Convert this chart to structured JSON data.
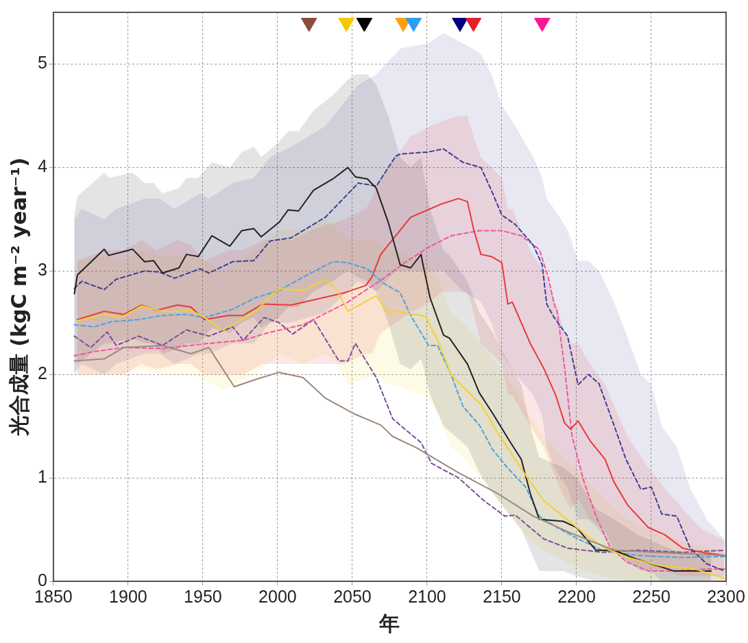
{
  "chart_data": {
    "type": "line",
    "xlabel": "年",
    "ylabel": "光合成量 (kgC m⁻² year⁻¹)",
    "xlim": [
      1850,
      2300
    ],
    "ylim": [
      0,
      5.5
    ],
    "xticks": [
      1850,
      1900,
      1950,
      2000,
      2050,
      2100,
      2150,
      2200,
      2250,
      2300
    ],
    "yticks": [
      0,
      1,
      2,
      3,
      4,
      5
    ],
    "grid": true,
    "legend": false,
    "marker": "none",
    "series": [
      {
        "color": "#a08878",
        "line_style": "solid",
        "x": [
          1864,
          1884,
          1897,
          1923,
          1942,
          1954,
          1971,
          1985,
          2001,
          2017,
          2032,
          2051,
          2069,
          2077,
          2093,
          2121,
          2147,
          2171,
          2194,
          2225,
          2299
        ],
        "values": [
          2.13,
          2.15,
          2.26,
          2.28,
          2.2,
          2.26,
          1.88,
          1.95,
          2.02,
          1.97,
          1.77,
          1.62,
          1.51,
          1.4,
          1.29,
          1.05,
          0.85,
          0.63,
          0.48,
          0.3,
          0.25
        ]
      },
      {
        "color": "#f2d22e",
        "line_style": "solid",
        "x": [
          1866,
          1884,
          1895,
          1909,
          1923,
          1933,
          1942,
          1951,
          1963,
          1970,
          1985,
          2001,
          2017,
          2032,
          2040,
          2047,
          2066,
          2074,
          2079,
          2096,
          2099,
          2108,
          2116,
          2124,
          2136,
          2147,
          2157,
          2169,
          2178,
          2191,
          2206,
          2219,
          2234,
          2256,
          2279,
          2299
        ],
        "values": [
          2.52,
          2.58,
          2.55,
          2.66,
          2.61,
          2.61,
          2.62,
          2.55,
          2.43,
          2.48,
          2.61,
          2.83,
          2.81,
          2.92,
          2.81,
          2.61,
          2.76,
          2.59,
          2.61,
          2.57,
          2.56,
          2.3,
          2.0,
          1.88,
          1.71,
          1.44,
          1.22,
          0.96,
          0.78,
          0.63,
          0.45,
          0.32,
          0.23,
          0.15,
          0.12,
          0.03
        ],
        "upper": [
          3.1,
          3.15,
          3.1,
          3.2,
          3.15,
          3.15,
          3.15,
          3.1,
          3.0,
          3.05,
          3.2,
          3.4,
          3.4,
          3.5,
          3.4,
          3.3,
          3.3,
          3.2,
          3.2,
          3.1,
          3.1,
          2.9,
          2.6,
          2.5,
          2.3,
          2.1,
          1.9,
          1.6,
          1.4,
          1.2,
          1.0,
          0.8,
          0.6,
          0.45,
          0.35,
          0.3
        ],
        "lower": [
          2.0,
          2.0,
          2.0,
          2.05,
          2.0,
          2.0,
          2.0,
          1.95,
          1.85,
          1.9,
          2.0,
          2.2,
          2.1,
          2.2,
          2.1,
          1.9,
          2.0,
          1.9,
          1.9,
          1.8,
          1.8,
          1.6,
          1.3,
          1.2,
          1.0,
          0.8,
          0.6,
          0.4,
          0.3,
          0.2,
          0.1,
          0.05,
          0,
          0,
          0,
          0
        ]
      },
      {
        "color": "#222222",
        "line_style": "solid",
        "x": [
          1864,
          1866,
          1884,
          1887,
          1903,
          1911,
          1917,
          1923,
          1934,
          1939,
          1947,
          1956,
          1968,
          1976,
          1984,
          1989,
          2001,
          2007,
          2014,
          2024,
          2037,
          2047,
          2052,
          2060,
          2066,
          2074,
          2082,
          2089,
          2096,
          2097,
          2102,
          2111,
          2115,
          2127,
          2135,
          2144,
          2155,
          2163,
          2169,
          2175,
          2191,
          2200,
          2213,
          2225,
          2241,
          2265,
          2290
        ],
        "values": [
          2.78,
          2.96,
          3.21,
          3.15,
          3.21,
          3.09,
          3.1,
          2.98,
          3.03,
          3.16,
          3.14,
          3.34,
          3.24,
          3.39,
          3.41,
          3.33,
          3.47,
          3.59,
          3.58,
          3.78,
          3.89,
          4.0,
          3.91,
          3.89,
          3.8,
          3.47,
          3.06,
          3.03,
          3.16,
          3.08,
          2.74,
          2.38,
          2.35,
          2.1,
          1.82,
          1.62,
          1.36,
          1.18,
          0.85,
          0.6,
          0.58,
          0.52,
          0.3,
          0.3,
          0.21,
          0.1,
          0.1
        ],
        "upper": [
          3.55,
          3.72,
          3.95,
          3.9,
          3.95,
          3.85,
          3.85,
          3.75,
          3.8,
          3.9,
          3.9,
          4.05,
          4.0,
          4.15,
          4.2,
          4.1,
          4.25,
          4.35,
          4.35,
          4.55,
          4.7,
          4.85,
          4.9,
          4.9,
          4.8,
          4.5,
          4.1,
          4.0,
          4.1,
          4.0,
          3.6,
          3.2,
          3.15,
          2.9,
          2.6,
          2.4,
          2.1,
          1.9,
          1.5,
          1.2,
          1.1,
          1.0,
          0.7,
          0.6,
          0.45,
          0.3,
          0.25
        ],
        "lower": [
          2.0,
          2.1,
          2.3,
          2.3,
          2.35,
          2.3,
          2.3,
          2.2,
          2.25,
          2.3,
          2.3,
          2.45,
          2.4,
          2.5,
          2.55,
          2.45,
          2.55,
          2.65,
          2.65,
          2.8,
          2.9,
          3.0,
          2.95,
          2.9,
          2.8,
          2.5,
          2.1,
          2.05,
          2.15,
          2.1,
          1.8,
          1.5,
          1.45,
          1.3,
          1.05,
          0.85,
          0.65,
          0.5,
          0.3,
          0.1,
          0.1,
          0.05,
          0,
          0,
          0,
          0,
          0
        ]
      },
      {
        "color": "#4aa3e0",
        "line_style": "dashed",
        "x": [
          1864,
          1877,
          1889,
          1907,
          1923,
          1939,
          1951,
          1970,
          1985,
          2001,
          2017,
          2037,
          2047,
          2060,
          2071,
          2082,
          2089,
          2101,
          2107,
          2116,
          2124,
          2135,
          2144,
          2153,
          2166,
          2175,
          2187,
          2201,
          2217,
          2241,
          2271,
          2299
        ],
        "values": [
          2.48,
          2.46,
          2.51,
          2.53,
          2.57,
          2.58,
          2.55,
          2.63,
          2.74,
          2.81,
          2.94,
          3.09,
          3.08,
          3.02,
          2.88,
          2.79,
          2.57,
          2.28,
          2.28,
          2.0,
          1.69,
          1.51,
          1.27,
          1.11,
          0.91,
          0.63,
          0.52,
          0.41,
          0.3,
          0.25,
          0.23,
          0.24
        ]
      },
      {
        "color": "#3e3e94",
        "line_style": "dashed",
        "x": [
          1864,
          1869,
          1884,
          1892,
          1911,
          1921,
          1931,
          1948,
          1954,
          1970,
          1984,
          1995,
          2009,
          2032,
          2054,
          2066,
          2079,
          2082,
          2101,
          2111,
          2124,
          2136,
          2143,
          2150,
          2159,
          2171,
          2177,
          2180,
          2185,
          2194,
          2201,
          2208,
          2215,
          2225,
          2233,
          2243,
          2250,
          2257,
          2267,
          2276,
          2287,
          2299
        ],
        "values": [
          2.83,
          2.9,
          2.82,
          2.92,
          3.0,
          2.99,
          2.93,
          3.02,
          2.98,
          3.09,
          3.1,
          3.29,
          3.32,
          3.52,
          3.85,
          3.82,
          4.11,
          4.13,
          4.15,
          4.18,
          4.05,
          4.0,
          3.78,
          3.54,
          3.45,
          3.25,
          3.06,
          2.68,
          2.55,
          2.37,
          1.9,
          2.0,
          1.91,
          1.51,
          1.18,
          0.89,
          0.91,
          0.65,
          0.63,
          0.32,
          0.17,
          0.1
        ],
        "upper": [
          3.5,
          3.6,
          3.5,
          3.6,
          3.7,
          3.7,
          3.6,
          3.75,
          3.7,
          3.85,
          3.9,
          4.1,
          4.2,
          4.4,
          4.8,
          4.9,
          5.1,
          5.15,
          5.2,
          5.3,
          5.2,
          5.1,
          4.9,
          4.6,
          4.4,
          4.1,
          3.9,
          3.7,
          3.6,
          3.4,
          3.1,
          3.1,
          3.0,
          2.7,
          2.4,
          2.0,
          1.9,
          1.5,
          1.3,
          0.9,
          0.6,
          0.4
        ],
        "lower": [
          2.0,
          2.1,
          2.0,
          2.1,
          2.2,
          2.2,
          2.1,
          2.2,
          2.2,
          2.3,
          2.3,
          2.5,
          2.5,
          2.6,
          2.9,
          2.8,
          3.0,
          3.0,
          3.0,
          3.0,
          2.8,
          2.7,
          2.5,
          2.2,
          2.0,
          1.8,
          1.6,
          1.3,
          1.1,
          0.9,
          0.6,
          0.6,
          0.5,
          0.3,
          0.2,
          0.1,
          0.1,
          0,
          0,
          0,
          0,
          0
        ]
      },
      {
        "color": "#e8383d",
        "line_style": "solid",
        "x": [
          1866,
          1884,
          1897,
          1909,
          1919,
          1933,
          1942,
          1951,
          1967,
          1977,
          1990,
          2009,
          2024,
          2045,
          2059,
          2063,
          2069,
          2079,
          2089,
          2102,
          2110,
          2121,
          2127,
          2131,
          2136,
          2143,
          2150,
          2154,
          2157,
          2169,
          2178,
          2186,
          2192,
          2196,
          2201,
          2209,
          2219,
          2225,
          2234,
          2248,
          2259,
          2271,
          2284,
          2299
        ],
        "values": [
          2.53,
          2.61,
          2.58,
          2.67,
          2.62,
          2.67,
          2.65,
          2.53,
          2.57,
          2.57,
          2.68,
          2.67,
          2.72,
          2.79,
          2.86,
          2.94,
          3.16,
          3.34,
          3.52,
          3.6,
          3.65,
          3.7,
          3.67,
          3.41,
          3.16,
          3.14,
          3.08,
          2.68,
          2.7,
          2.3,
          2.06,
          1.8,
          1.53,
          1.47,
          1.55,
          1.36,
          1.18,
          0.96,
          0.74,
          0.52,
          0.45,
          0.32,
          0.28,
          0.25
        ],
        "upper": [
          3.1,
          3.2,
          3.2,
          3.3,
          3.2,
          3.3,
          3.25,
          3.1,
          3.2,
          3.2,
          3.3,
          3.3,
          3.4,
          3.5,
          3.6,
          3.7,
          3.9,
          4.1,
          4.3,
          4.4,
          4.45,
          4.5,
          4.5,
          4.3,
          4.1,
          4.0,
          3.9,
          3.6,
          3.6,
          3.2,
          3.0,
          2.7,
          2.4,
          2.3,
          2.3,
          2.1,
          1.9,
          1.7,
          1.4,
          1.1,
          0.9,
          0.7,
          0.5,
          0.4
        ],
        "lower": [
          2.0,
          2.0,
          2.0,
          2.1,
          2.05,
          2.1,
          2.1,
          2.0,
          2.0,
          2.0,
          2.1,
          2.1,
          2.1,
          2.1,
          2.2,
          2.2,
          2.4,
          2.5,
          2.6,
          2.7,
          2.8,
          2.8,
          2.8,
          2.6,
          2.3,
          2.2,
          2.1,
          1.8,
          1.8,
          1.5,
          1.3,
          1.0,
          0.8,
          0.7,
          0.8,
          0.6,
          0.5,
          0.3,
          0.2,
          0.1,
          0.1,
          0.05,
          0.05,
          0.05
        ]
      },
      {
        "color": "#f0559e",
        "line_style": "dashed",
        "x": [
          1864,
          1877,
          1897,
          1923,
          1954,
          1977,
          1993,
          2017,
          2047,
          2070,
          2085,
          2101,
          2116,
          2135,
          2150,
          2163,
          2175,
          2181,
          2185,
          2187,
          2192,
          2197,
          2205,
          2213,
          2222,
          2233,
          2248,
          2264,
          2287,
          2299
        ],
        "values": [
          2.18,
          2.22,
          2.26,
          2.25,
          2.3,
          2.33,
          2.4,
          2.48,
          2.7,
          2.92,
          3.08,
          3.23,
          3.34,
          3.39,
          3.39,
          3.34,
          3.21,
          2.94,
          2.68,
          2.61,
          2.06,
          1.4,
          0.96,
          0.63,
          0.34,
          0.19,
          0.1,
          0.1,
          0.12,
          0.12
        ]
      },
      {
        "color": "#7a4f9a",
        "line_style": "dashed",
        "x": [
          1864,
          1875,
          1886,
          1892,
          1907,
          1923,
          1939,
          1954,
          1970,
          1977,
          1991,
          2001,
          2010,
          2024,
          2041,
          2047,
          2052,
          2066,
          2077,
          2096,
          2103,
          2121,
          2138,
          2152,
          2159,
          2178,
          2194,
          2217,
          2241,
          2271,
          2299
        ],
        "values": [
          2.37,
          2.26,
          2.41,
          2.28,
          2.37,
          2.28,
          2.43,
          2.37,
          2.46,
          2.33,
          2.55,
          2.5,
          2.39,
          2.53,
          2.13,
          2.13,
          2.3,
          1.97,
          1.57,
          1.34,
          1.14,
          1.0,
          0.78,
          0.63,
          0.64,
          0.41,
          0.32,
          0.28,
          0.3,
          0.28,
          0.3
        ]
      },
      {
        "type": "scatter",
        "marker": "triangle",
        "x": [
          2021,
          2046,
          2058,
          2084,
          2091,
          2122,
          2131,
          2177
        ],
        "values": [
          5.4,
          5.4,
          5.4,
          5.4,
          5.4,
          5.4,
          5.4,
          5.4
        ],
        "colors": [
          "#8b4c3c",
          "#f5c800",
          "#000000",
          "#ff9f10",
          "#2a9df4",
          "#000080",
          "#e0202a",
          "#ff1493"
        ]
      }
    ]
  }
}
